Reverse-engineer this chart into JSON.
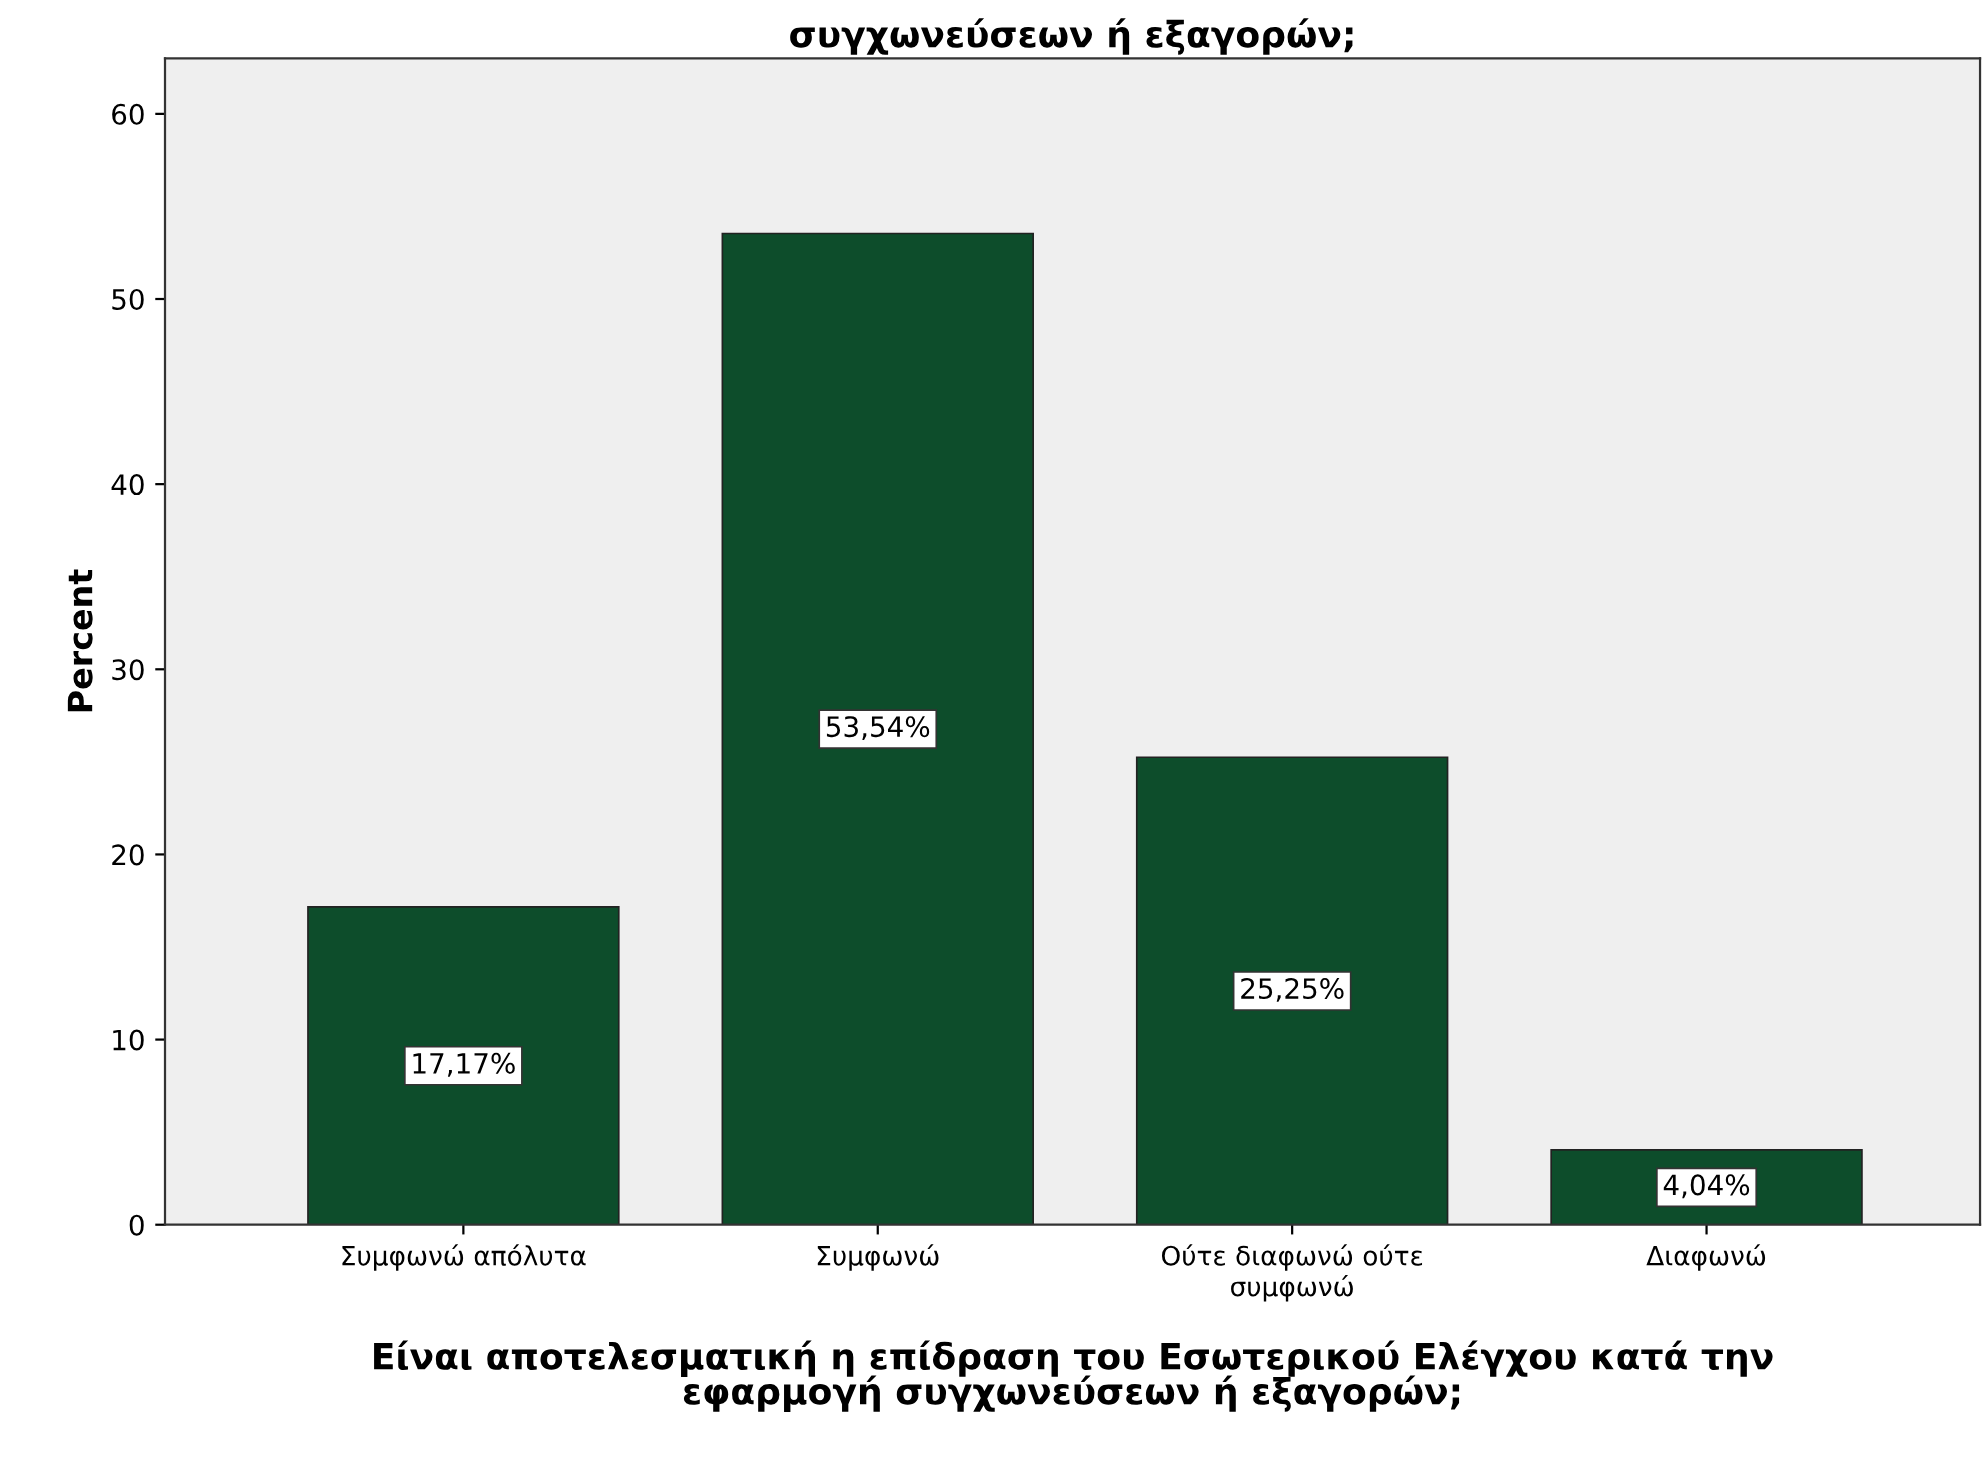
{
  "chart_data": {
    "type": "bar",
    "title": "συγχωνεύσεων ή εξαγορών;",
    "xlabel": "Είναι αποτελεσματική η επίδραση του Εσωτερικού Ελέγχου κατά την\nεφαρμογή συγχωνεύσεων ή εξαγορών;",
    "ylabel": "Percent",
    "categories": [
      "Συμφωνώ απόλυτα",
      "Συμφωνώ",
      "Ούτε διαφωνώ ούτε\nσυμφωνώ",
      "Διαφωνώ"
    ],
    "values": [
      17.17,
      53.54,
      25.25,
      4.04
    ],
    "value_labels": [
      "17,17%",
      "53,54%",
      "25,25%",
      "4,04%"
    ],
    "color": "#0d4d2b",
    "ylim": [
      0,
      63
    ],
    "yticks": [
      0,
      10,
      20,
      30,
      40,
      50,
      60
    ],
    "grid": false,
    "legend": false
  }
}
